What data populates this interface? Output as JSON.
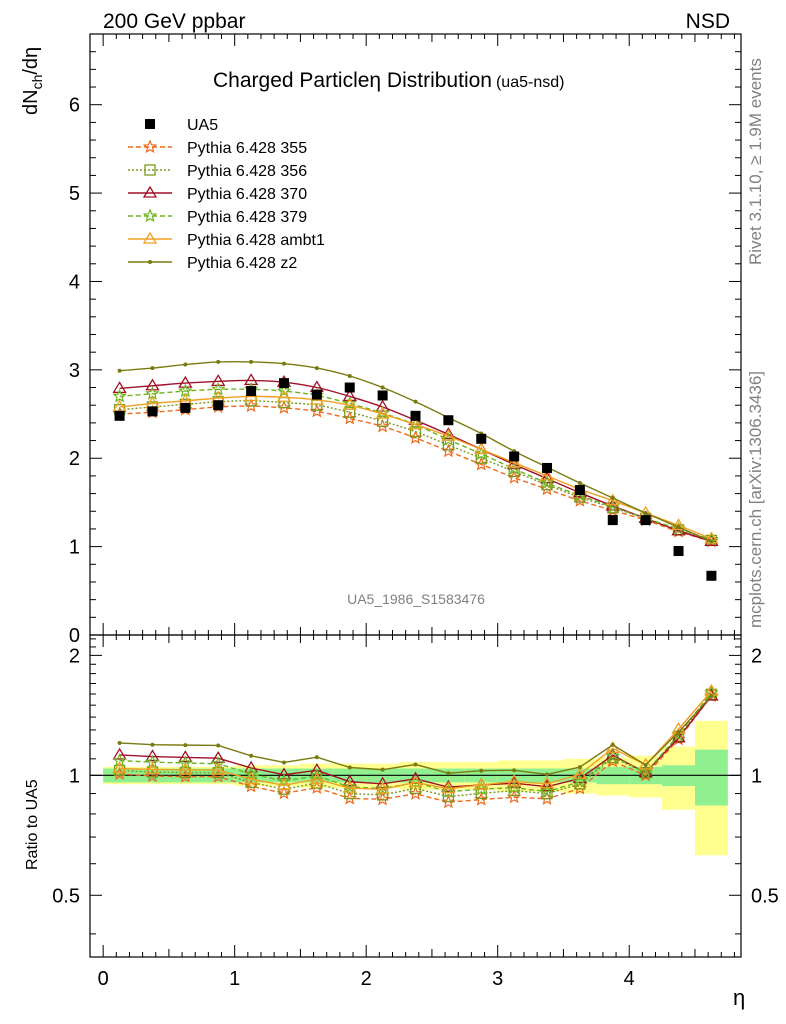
{
  "header": {
    "left": "200 GeV ppbar",
    "right": "NSD"
  },
  "side_labels": {
    "top": "Rivet 3.1.10, ≥ 1.9M events",
    "bottom": "mcplots.cern.ch [arXiv:1306.3436]"
  },
  "title": {
    "main": "Charged Particleη Distribution",
    "sub": "(ua5-nsd)"
  },
  "watermark": "UA5_1986_S1583476",
  "colors": {
    "data": "#000000",
    "p355": "#ee6a1c",
    "p356": "#7a9a1e",
    "p370": "#a01028",
    "p379": "#6eb41e",
    "ambt1": "#f0a020",
    "z2": "#7a7a10",
    "band_inner": "#90f090",
    "band_outer": "#ffff90"
  },
  "chart_data": {
    "type": "line",
    "xlabel": "η",
    "ylabel": "dN_ch/dη",
    "ratio_ylabel": "Ratio to UA5",
    "xlim": [
      -0.1,
      4.85
    ],
    "ylim": [
      0,
      6.8
    ],
    "ratio_ylim": [
      0.35,
      2.25
    ],
    "xticks": [
      "0",
      "1",
      "2",
      "3",
      "4"
    ],
    "yticks": [
      "0",
      "1",
      "2",
      "3",
      "4",
      "5",
      "6"
    ],
    "ratio_yticks": [
      "0.5",
      "1",
      "2"
    ],
    "x": [
      0.125,
      0.375,
      0.625,
      0.875,
      1.125,
      1.375,
      1.625,
      1.875,
      2.125,
      2.375,
      2.625,
      2.875,
      3.125,
      3.375,
      3.625,
      3.875,
      4.125,
      4.375,
      4.625
    ],
    "legend_position": "top-left",
    "data": {
      "name": "UA5",
      "values": [
        2.48,
        2.53,
        2.57,
        2.6,
        2.76,
        2.85,
        2.72,
        2.8,
        2.71,
        2.48,
        2.43,
        2.22,
        2.02,
        1.89,
        1.64,
        1.3,
        1.3,
        0.95,
        0.67
      ],
      "ratio_band_inner": [
        0.04,
        0.04,
        0.04,
        0.04,
        0.04,
        0.04,
        0.04,
        0.04,
        0.04,
        0.04,
        0.04,
        0.04,
        0.04,
        0.04,
        0.04,
        0.05,
        0.05,
        0.06,
        0.16
      ],
      "ratio_band_outer": [
        0.05,
        0.05,
        0.05,
        0.05,
        0.06,
        0.06,
        0.07,
        0.07,
        0.07,
        0.08,
        0.08,
        0.08,
        0.09,
        0.09,
        0.1,
        0.11,
        0.12,
        0.18,
        0.37
      ]
    },
    "series": [
      {
        "name": "Pythia 6.428 355",
        "key": "p355",
        "marker": "star",
        "dash": "5,3",
        "values": [
          2.5,
          2.52,
          2.55,
          2.58,
          2.59,
          2.57,
          2.53,
          2.45,
          2.36,
          2.23,
          2.08,
          1.93,
          1.78,
          1.65,
          1.52,
          1.41,
          1.3,
          1.17,
          1.06
        ]
      },
      {
        "name": "Pythia 6.428 356",
        "key": "p356",
        "marker": "square",
        "dash": "2,2",
        "values": [
          2.55,
          2.58,
          2.61,
          2.64,
          2.65,
          2.63,
          2.6,
          2.52,
          2.42,
          2.3,
          2.15,
          2.0,
          1.85,
          1.7,
          1.56,
          1.44,
          1.32,
          1.19,
          1.07
        ]
      },
      {
        "name": "Pythia 6.428 370",
        "key": "p370",
        "marker": "triangle",
        "dash": "",
        "values": [
          2.79,
          2.82,
          2.85,
          2.87,
          2.88,
          2.86,
          2.8,
          2.7,
          2.58,
          2.43,
          2.27,
          2.1,
          1.93,
          1.77,
          1.61,
          1.46,
          1.32,
          1.18,
          1.06
        ]
      },
      {
        "name": "Pythia 6.428 379",
        "key": "p379",
        "marker": "star",
        "dash": "5,3",
        "values": [
          2.7,
          2.73,
          2.76,
          2.78,
          2.78,
          2.76,
          2.71,
          2.62,
          2.51,
          2.38,
          2.21,
          2.05,
          1.88,
          1.72,
          1.58,
          1.45,
          1.32,
          1.2,
          1.08
        ]
      },
      {
        "name": "Pythia 6.428 ambt1",
        "key": "ambt1",
        "marker": "triangle",
        "dash": "",
        "values": [
          2.58,
          2.62,
          2.65,
          2.68,
          2.7,
          2.69,
          2.66,
          2.6,
          2.5,
          2.38,
          2.25,
          2.1,
          1.95,
          1.8,
          1.65,
          1.52,
          1.38,
          1.24,
          1.09
        ]
      },
      {
        "name": "Pythia 6.428 z2",
        "key": "z2",
        "marker": "dot",
        "dash": "",
        "values": [
          2.99,
          3.02,
          3.06,
          3.09,
          3.09,
          3.07,
          3.02,
          2.93,
          2.8,
          2.64,
          2.46,
          2.28,
          2.08,
          1.9,
          1.72,
          1.55,
          1.38,
          1.22,
          1.06
        ]
      }
    ]
  }
}
